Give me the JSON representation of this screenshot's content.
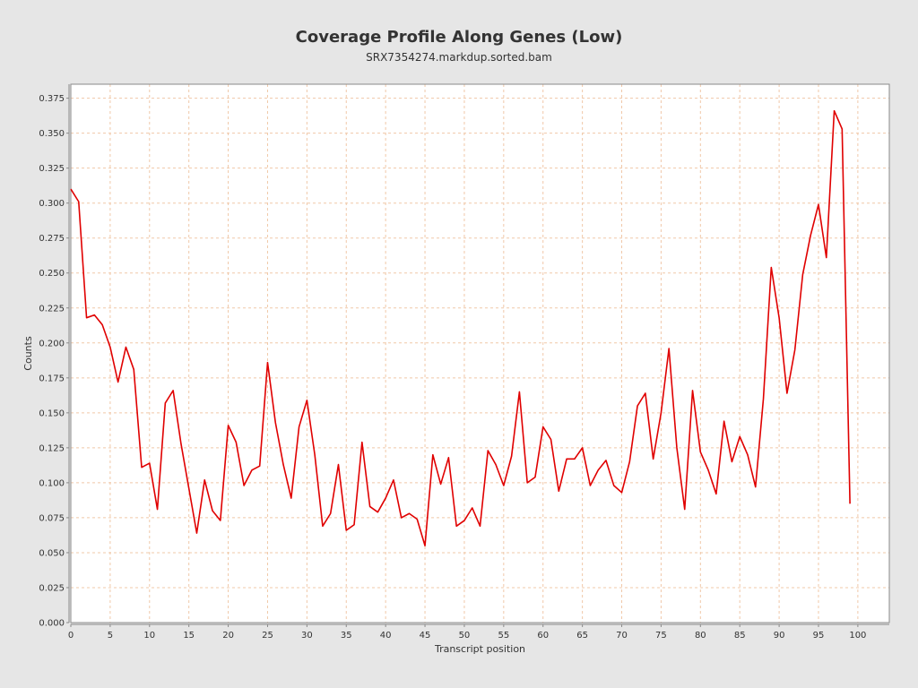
{
  "chart_data": {
    "type": "line",
    "title": "Coverage Profile Along Genes (Low)",
    "subtitle": "SRX7354274.markdup.sorted.bam",
    "xlabel": "Transcript position",
    "ylabel": "Counts",
    "xlim": [
      0,
      104
    ],
    "ylim": [
      0,
      0.385
    ],
    "x_ticks": [
      0,
      5,
      10,
      15,
      20,
      25,
      30,
      35,
      40,
      45,
      50,
      55,
      60,
      65,
      70,
      75,
      80,
      85,
      90,
      95,
      100
    ],
    "y_ticks": [
      "0.000",
      "0.025",
      "0.050",
      "0.075",
      "0.100",
      "0.125",
      "0.150",
      "0.175",
      "0.200",
      "0.225",
      "0.250",
      "0.275",
      "0.300",
      "0.325",
      "0.350",
      "0.375"
    ],
    "grid": true,
    "series": [
      {
        "color": "#e00000",
        "x": [
          0,
          1,
          2,
          3,
          4,
          5,
          6,
          7,
          8,
          9,
          10,
          11,
          12,
          13,
          14,
          15,
          16,
          17,
          18,
          19,
          20,
          21,
          22,
          23,
          24,
          25,
          26,
          27,
          28,
          29,
          30,
          31,
          32,
          33,
          34,
          35,
          36,
          37,
          38,
          39,
          40,
          41,
          42,
          43,
          44,
          45,
          46,
          47,
          48,
          49,
          50,
          51,
          52,
          53,
          54,
          55,
          56,
          57,
          58,
          59,
          60,
          61,
          62,
          63,
          64,
          65,
          66,
          67,
          68,
          69,
          70,
          71,
          72,
          73,
          74,
          75,
          76,
          77,
          78,
          79,
          80,
          81,
          82,
          83,
          84,
          85,
          86,
          87,
          88,
          89,
          90,
          91,
          92,
          93,
          94,
          95,
          96,
          97,
          98,
          99
        ],
        "y": [
          0.31,
          0.301,
          0.218,
          0.22,
          0.213,
          0.197,
          0.172,
          0.197,
          0.181,
          0.111,
          0.114,
          0.081,
          0.157,
          0.166,
          0.128,
          0.096,
          0.064,
          0.102,
          0.08,
          0.073,
          0.141,
          0.129,
          0.098,
          0.109,
          0.112,
          0.186,
          0.143,
          0.113,
          0.089,
          0.14,
          0.159,
          0.12,
          0.069,
          0.078,
          0.113,
          0.066,
          0.07,
          0.129,
          0.083,
          0.079,
          0.089,
          0.102,
          0.075,
          0.078,
          0.074,
          0.055,
          0.12,
          0.099,
          0.118,
          0.069,
          0.073,
          0.082,
          0.069,
          0.123,
          0.113,
          0.098,
          0.119,
          0.165,
          0.1,
          0.104,
          0.14,
          0.131,
          0.094,
          0.117,
          0.117,
          0.125,
          0.098,
          0.109,
          0.116,
          0.098,
          0.093,
          0.115,
          0.155,
          0.164,
          0.117,
          0.15,
          0.196,
          0.125,
          0.081,
          0.166,
          0.122,
          0.109,
          0.092,
          0.144,
          0.115,
          0.133,
          0.12,
          0.097,
          0.16,
          0.254,
          0.218,
          0.164,
          0.195,
          0.249,
          0.277,
          0.299,
          0.261,
          0.366,
          0.353,
          0.085
        ]
      }
    ]
  }
}
